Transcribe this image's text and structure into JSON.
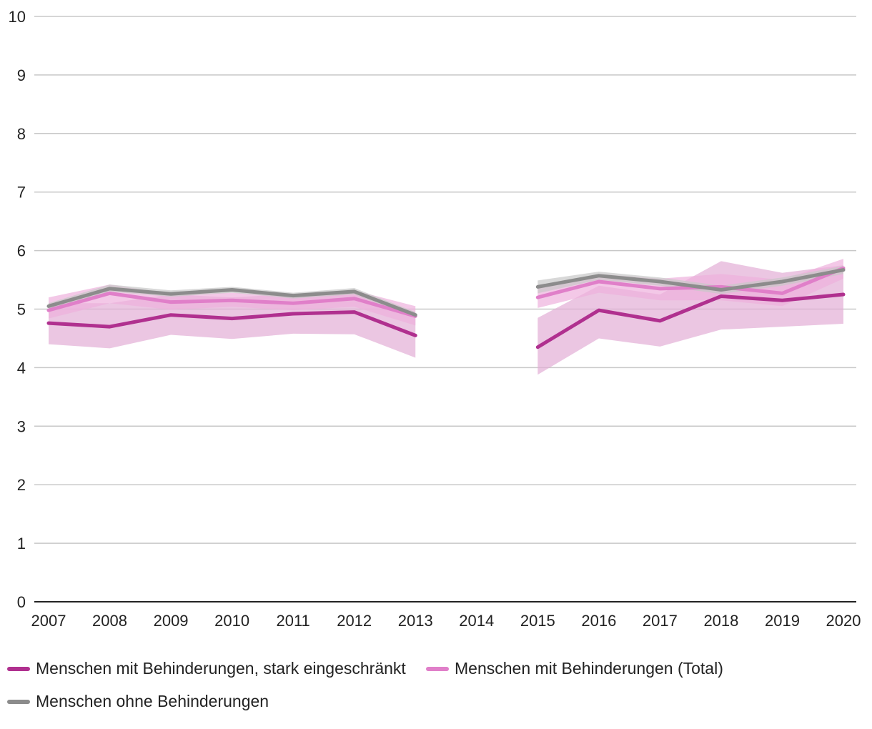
{
  "chart_data": {
    "type": "line",
    "title": "",
    "xlabel": "",
    "ylabel": "",
    "ylim": [
      0,
      10
    ],
    "yticks": [
      0,
      1,
      2,
      3,
      4,
      5,
      6,
      7,
      8,
      9,
      10
    ],
    "categories": [
      "2007",
      "2008",
      "2009",
      "2010",
      "2011",
      "2012",
      "2013",
      "2014",
      "2015",
      "2016",
      "2017",
      "2018",
      "2019",
      "2020"
    ],
    "grid": true,
    "legend_position": "bottom",
    "series": [
      {
        "name": "Menschen ohne Behinderungen",
        "color": "#8c8c8c",
        "band_color": "#c8c8c8",
        "values": [
          5.05,
          5.35,
          5.26,
          5.33,
          5.23,
          5.3,
          4.9,
          null,
          5.38,
          5.57,
          5.47,
          5.33,
          5.47,
          5.67
        ],
        "lower": [
          5.0,
          5.3,
          5.21,
          5.28,
          5.18,
          5.25,
          4.85,
          null,
          5.27,
          5.5,
          5.4,
          5.26,
          5.4,
          5.6
        ],
        "upper": [
          5.1,
          5.42,
          5.32,
          5.38,
          5.28,
          5.36,
          4.95,
          null,
          5.49,
          5.64,
          5.54,
          5.4,
          5.54,
          5.74
        ]
      },
      {
        "name": "Menschen mit Behinderungen (Total)",
        "color": "#e07fc9",
        "band_color": "#eeb0dd",
        "values": [
          4.98,
          5.27,
          5.12,
          5.15,
          5.1,
          5.18,
          4.88,
          null,
          5.2,
          5.47,
          5.35,
          5.38,
          5.27,
          5.7
        ],
        "lower": [
          4.84,
          5.1,
          4.99,
          5.04,
          4.98,
          5.04,
          4.72,
          null,
          5.02,
          5.28,
          5.15,
          5.15,
          5.05,
          5.52
        ],
        "upper": [
          5.2,
          5.42,
          5.26,
          5.28,
          5.23,
          5.32,
          5.05,
          null,
          5.38,
          5.6,
          5.52,
          5.6,
          5.5,
          5.86
        ]
      },
      {
        "name": "Menschen mit Behinderungen, stark eingeschränkt",
        "color": "#b0308f",
        "band_color": "#e2aed5",
        "values": [
          4.76,
          4.7,
          4.9,
          4.84,
          4.92,
          4.95,
          4.55,
          null,
          4.35,
          4.98,
          4.8,
          5.22,
          5.15,
          5.25
        ],
        "lower": [
          4.4,
          4.33,
          4.56,
          4.49,
          4.58,
          4.57,
          4.17,
          null,
          3.88,
          4.5,
          4.36,
          4.65,
          4.7,
          4.75
        ],
        "upper": [
          5.1,
          5.1,
          5.25,
          5.2,
          5.26,
          5.28,
          4.95,
          null,
          4.85,
          5.4,
          5.25,
          5.82,
          5.62,
          5.75
        ]
      }
    ],
    "legend": [
      {
        "label": "Menschen mit Behinderungen, stark eingeschränkt",
        "color": "#b0308f"
      },
      {
        "label": "Menschen mit Behinderungen (Total)",
        "color": "#e07fc9"
      },
      {
        "label": "Menschen ohne Behinderungen",
        "color": "#8c8c8c"
      }
    ]
  }
}
